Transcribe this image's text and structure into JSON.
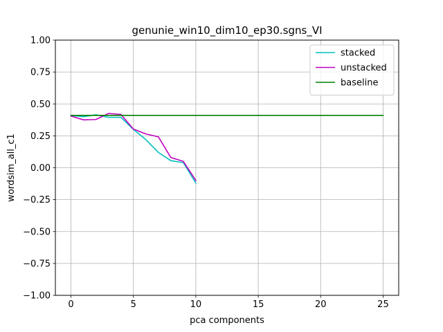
{
  "chart_data": {
    "type": "line",
    "title": "genunie_win10_dim10_ep30.sgns_VI",
    "xlabel": "pca components",
    "ylabel": "wordsim_all_c1",
    "xlim": [
      -1.25,
      26.25
    ],
    "ylim": [
      -1.0,
      1.0
    ],
    "grid": true,
    "legend_position": "top-right",
    "x_ticks": [
      0,
      5,
      10,
      15,
      20,
      25
    ],
    "x_tick_labels": [
      "0",
      "5",
      "10",
      "15",
      "20",
      "25"
    ],
    "y_ticks": [
      1.0,
      0.75,
      0.5,
      0.25,
      0.0,
      -0.25,
      -0.5,
      -0.75,
      -1.0
    ],
    "y_tick_labels": [
      "1.00",
      "0.75",
      "0.50",
      "0.25",
      "0.00",
      "−0.25",
      "−0.50",
      "−0.75",
      "−1.00"
    ],
    "series": [
      {
        "name": "stacked",
        "color": "#00bfbf",
        "x": [
          0,
          1,
          2,
          3,
          4,
          5,
          6,
          7,
          8,
          9,
          10
        ],
        "values": [
          0.41,
          0.4,
          0.415,
          0.395,
          0.395,
          0.3,
          0.22,
          0.12,
          0.055,
          0.04,
          -0.12
        ]
      },
      {
        "name": "unstacked",
        "color": "#bf00bf",
        "x": [
          0,
          1,
          2,
          3,
          4,
          5,
          6,
          7,
          8,
          9,
          10
        ],
        "values": [
          0.405,
          0.375,
          0.378,
          0.425,
          0.418,
          0.303,
          0.265,
          0.242,
          0.08,
          0.05,
          -0.1
        ]
      },
      {
        "name": "baseline",
        "color": "#008000",
        "x": [
          0,
          25
        ],
        "values": [
          0.41,
          0.41
        ]
      }
    ]
  }
}
